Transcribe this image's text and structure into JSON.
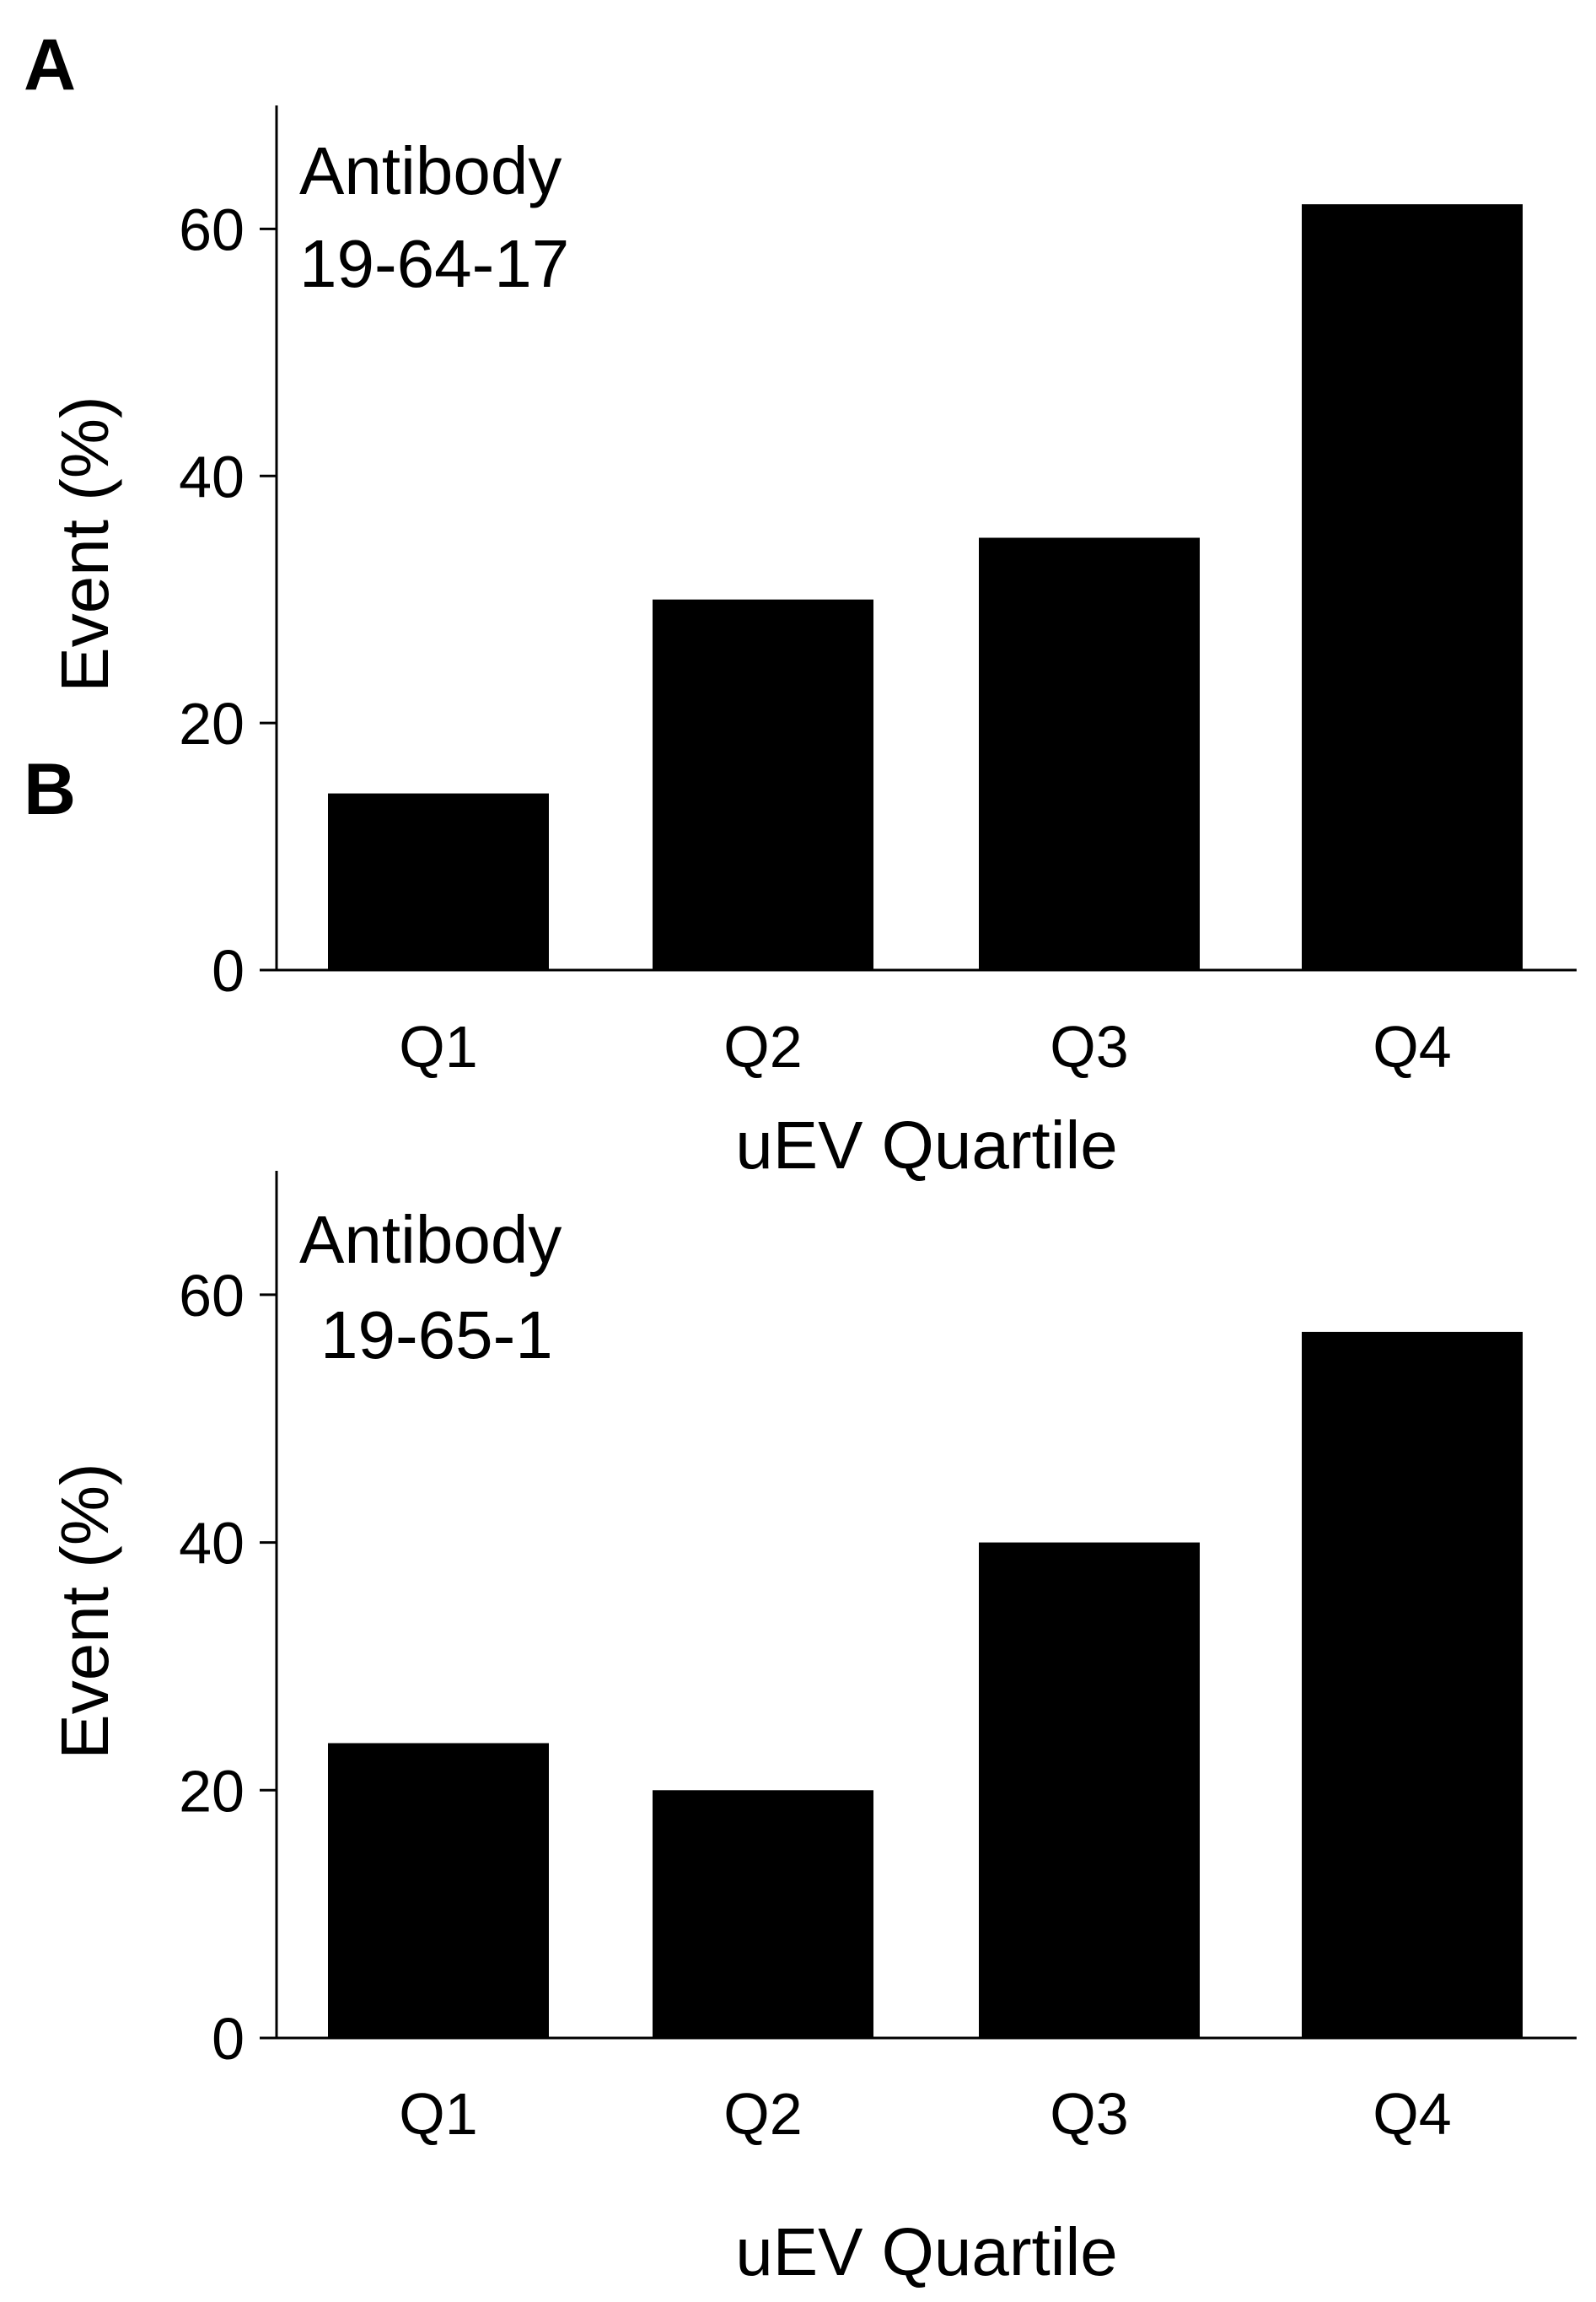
{
  "chart_data": [
    {
      "type": "bar",
      "panel_label": "A",
      "annotation": [
        "Antibody",
        "19-64-17"
      ],
      "categories": [
        "Q1",
        "Q2",
        "Q3",
        "Q4"
      ],
      "values": [
        14.3,
        30.0,
        35.0,
        62.0
      ],
      "xlabel": "uEV Quartile",
      "ylabel": "Event (%)",
      "ylim": [
        0,
        70
      ],
      "yticks": [
        0,
        20,
        40,
        60
      ],
      "grid": false,
      "bar_color": "#000000"
    },
    {
      "type": "bar",
      "panel_label": "B",
      "annotation": [
        "Antibody",
        "19-65-1"
      ],
      "categories": [
        "Q1",
        "Q2",
        "Q3",
        "Q4"
      ],
      "values": [
        23.8,
        20.0,
        40.0,
        57.0
      ],
      "xlabel": "uEV Quartile",
      "ylabel": "Event (%)",
      "ylim": [
        0,
        70
      ],
      "yticks": [
        0,
        20,
        40,
        60
      ],
      "grid": false,
      "bar_color": "#000000"
    }
  ]
}
